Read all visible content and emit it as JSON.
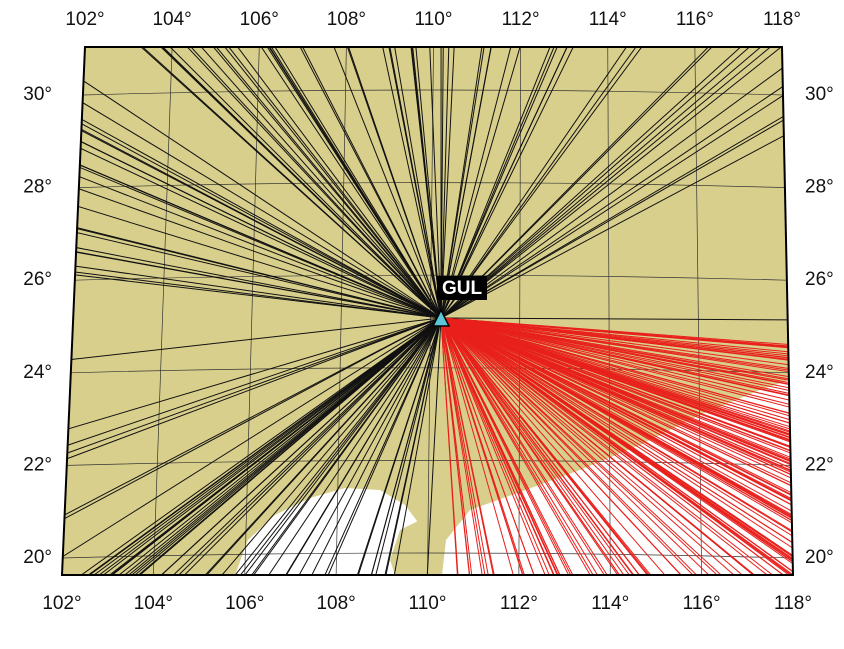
{
  "map": {
    "top_labels": [
      "102°",
      "104°",
      "106°",
      "108°",
      "110°",
      "112°",
      "114°",
      "116°",
      "118°"
    ],
    "bottom_labels": [
      "102°",
      "104°",
      "106°",
      "108°",
      "110°",
      "112°",
      "114°",
      "116°",
      "118°"
    ],
    "left_labels": [
      "30°",
      "28°",
      "26°",
      "24°",
      "22°",
      "20°"
    ],
    "right_labels": [
      "30°",
      "28°",
      "26°",
      "24°",
      "22°",
      "20°"
    ],
    "station": "GUL"
  }
}
